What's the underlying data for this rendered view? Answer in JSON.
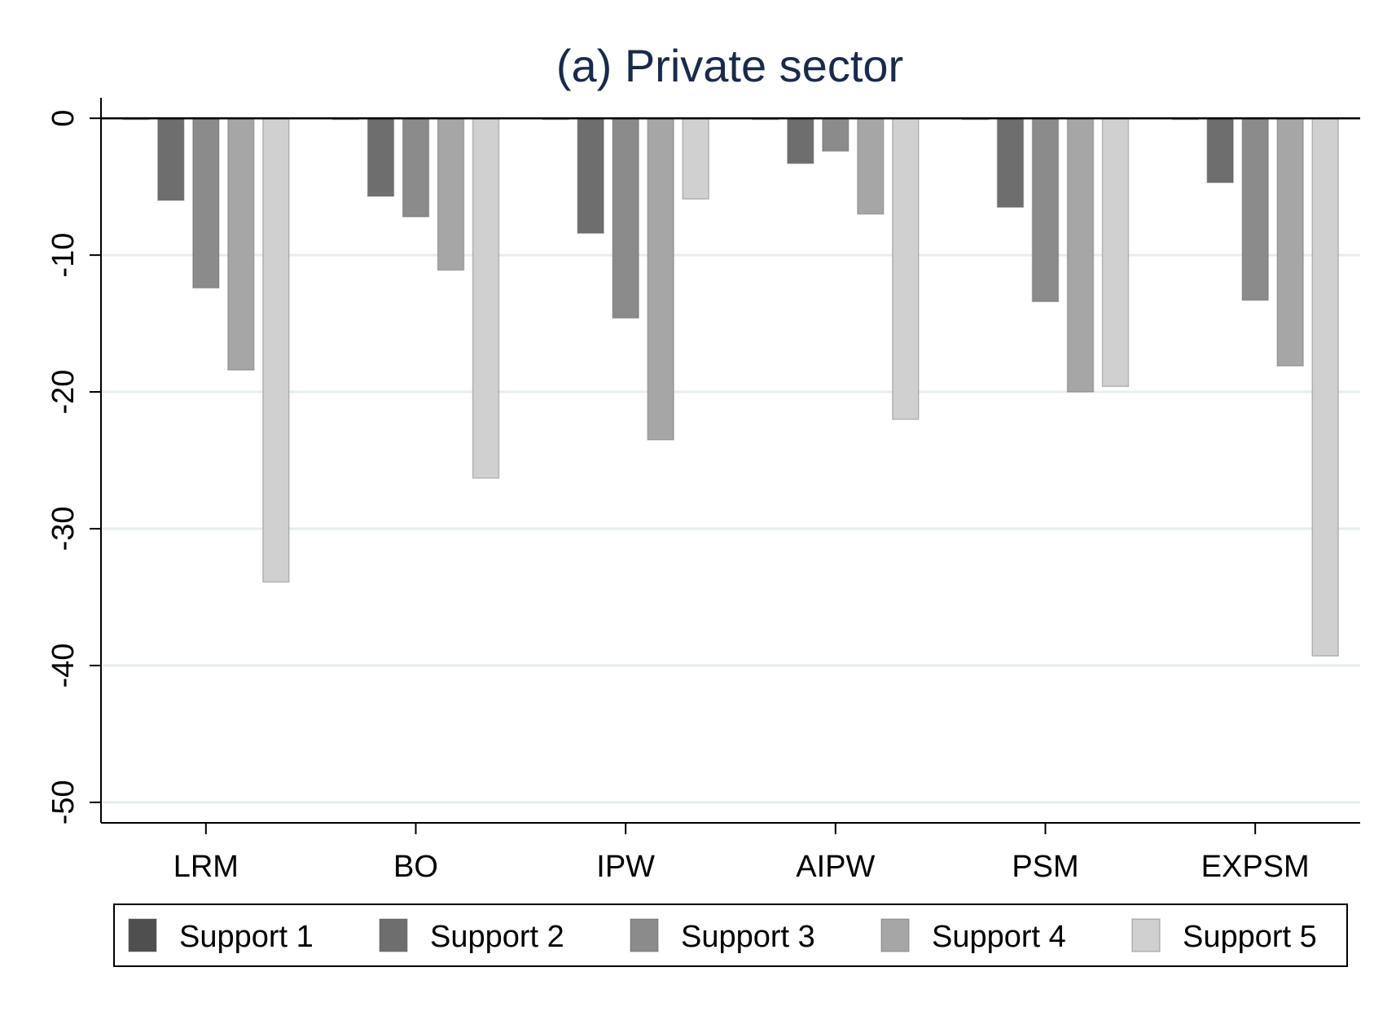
{
  "chart_data": {
    "type": "bar",
    "title": "(a) Private sector",
    "xlabel": "",
    "ylabel": "",
    "ylim": [
      -51.5,
      1.5
    ],
    "yticks": [
      0,
      -10,
      -20,
      -30,
      -40,
      -50
    ],
    "ytick_labels": [
      "0",
      "-10",
      "-20",
      "-30",
      "-40",
      "-50"
    ],
    "grid": true,
    "legend_position": "bottom",
    "categories": [
      "LRM",
      "BO",
      "IPW",
      "AIPW",
      "PSM",
      "EXPSM"
    ],
    "series": [
      {
        "name": "Support 1",
        "color": "#4f4f4f",
        "values": [
          0,
          0,
          0,
          0,
          0,
          0
        ]
      },
      {
        "name": "Support 2",
        "color": "#6e6e6e",
        "values": [
          -6.0,
          -5.7,
          -8.4,
          -3.3,
          -6.5,
          -4.7
        ]
      },
      {
        "name": "Support 3",
        "color": "#8b8b8b",
        "values": [
          -12.4,
          -7.2,
          -14.6,
          -2.4,
          -13.4,
          -13.3
        ]
      },
      {
        "name": "Support 4",
        "color": "#a6a6a6",
        "values": [
          -18.4,
          -11.1,
          -23.5,
          -7.0,
          -20.0,
          -18.1
        ]
      },
      {
        "name": "Support 5",
        "color": "#d0d0d0",
        "values": [
          -33.9,
          -26.3,
          -5.9,
          -22.0,
          -19.6,
          -39.3
        ]
      }
    ]
  }
}
